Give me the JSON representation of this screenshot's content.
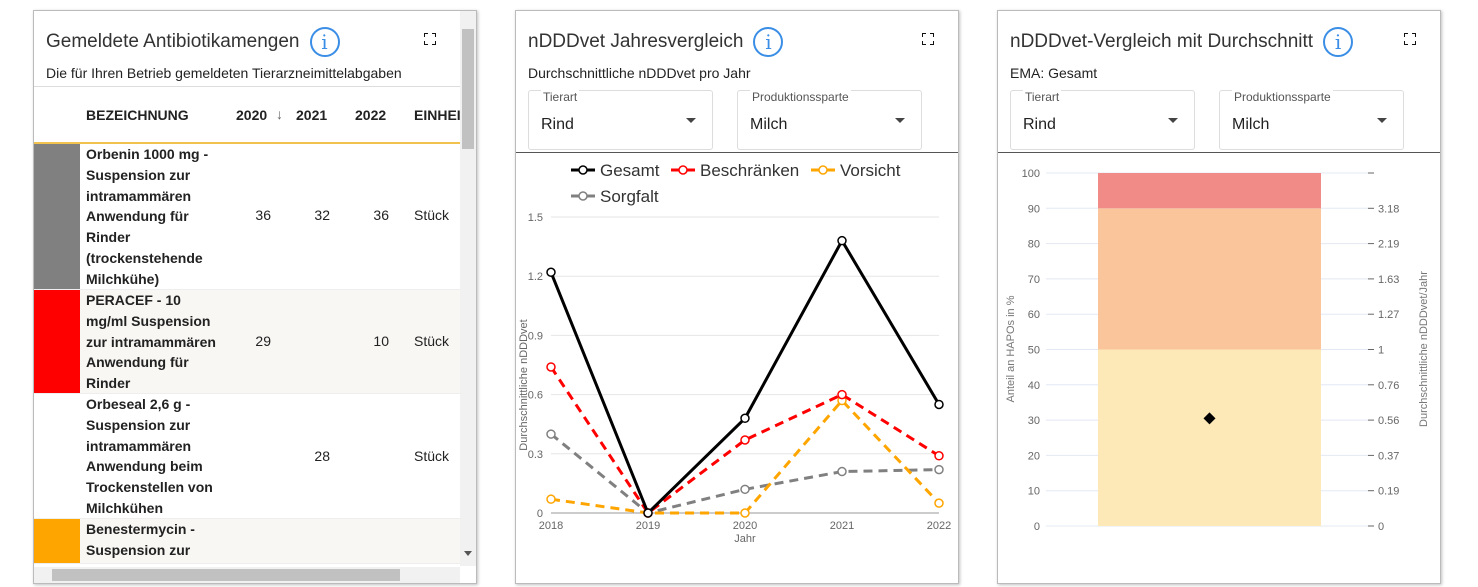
{
  "panel1": {
    "title": "Gemeldete Antibiotikamengen",
    "subtitle": "Die für Ihren Betrieb gemeldeten Tierarzneimittelabgaben",
    "columns": [
      "BEZEICHNUNG",
      "2020",
      "2021",
      "2022",
      "EINHEI"
    ],
    "rows": [
      {
        "color": "#808080",
        "name": "Orbenin 1000 mg - Suspension zur intramammären Anwendung für Rinder (trockenstehende Milchkühe)",
        "y2020": "36",
        "y2021": "32",
        "y2022": "36",
        "unit": "Stück"
      },
      {
        "color": "#ff0000",
        "name": "PERACEF - 10 mg/ml Suspension zur intramammären Anwendung für Rinder",
        "y2020": "29",
        "y2021": "",
        "y2022": "10",
        "unit": "Stück"
      },
      {
        "color": "#ffffff",
        "name": "Orbeseal 2,6 g - Suspension zur intramammären Anwendung beim Trockenstellen von Milchkühen",
        "y2020": "",
        "y2021": "28",
        "y2022": "",
        "unit": "Stück"
      },
      {
        "color": "#ffa500",
        "name": "Benestermycin - Suspension zur",
        "y2020": "",
        "y2021": "",
        "y2022": "",
        "unit": ""
      }
    ]
  },
  "panel2": {
    "title": "nDDDvet Jahresvergleich",
    "subtitle": "Durchschnittliche nDDDvet pro Jahr",
    "tierart_label": "Tierart",
    "tierart": "Rind",
    "sparte_label": "Produktionssparte",
    "sparte": "Milch"
  },
  "panel3": {
    "title": "nDDDvet-Vergleich mit Durchschnitt",
    "subtitle": "EMA: Gesamt",
    "tierart_label": "Tierart",
    "tierart": "Rind",
    "sparte_label": "Produktionssparte",
    "sparte": "Milch"
  },
  "chart_data": [
    {
      "type": "line",
      "xlabel": "Jahr",
      "ylabel": "Durchschnittliche nDDDvet",
      "x": [
        "2018",
        "2019",
        "2020",
        "2021",
        "2022"
      ],
      "ylim": [
        0,
        1.5
      ],
      "yticks": [
        "0",
        "0.3",
        "0.6",
        "0.9",
        "1.2",
        "1.5"
      ],
      "legend": "top",
      "series": [
        {
          "name": "Gesamt",
          "color": "#000000",
          "dashed": false,
          "values": [
            1.22,
            0,
            0.48,
            1.38,
            0.55
          ]
        },
        {
          "name": "Beschränken",
          "color": "#ff0000",
          "dashed": true,
          "values": [
            0.74,
            0,
            0.37,
            0.6,
            0.29
          ]
        },
        {
          "name": "Vorsicht",
          "color": "#ffa500",
          "dashed": true,
          "values": [
            0.07,
            0,
            0,
            0.57,
            0.05
          ]
        },
        {
          "name": "Sorgfalt",
          "color": "#808080",
          "dashed": true,
          "values": [
            0.4,
            0,
            0.12,
            0.21,
            0.22
          ]
        }
      ]
    },
    {
      "type": "bar",
      "ylabel": "Anteil an HAPOs in %",
      "y2label": "Durchschnittliche nDDDvet/Jahr",
      "ylim": [
        0,
        100
      ],
      "yticks": [
        "0",
        "10",
        "20",
        "30",
        "40",
        "50",
        "60",
        "70",
        "80",
        "90",
        "100"
      ],
      "y2ticks": [
        "0",
        "0.19",
        "0.37",
        "0.56",
        "0.76",
        "1",
        "1.27",
        "1.63",
        "2.19",
        "3.18",
        ""
      ],
      "bands": [
        {
          "from": 0,
          "to": 50,
          "color": "#fde9b8"
        },
        {
          "from": 50,
          "to": 90,
          "color": "#fbc59b"
        },
        {
          "from": 90,
          "to": 100,
          "color": "#f08b88"
        }
      ],
      "marker": 30.5
    }
  ]
}
